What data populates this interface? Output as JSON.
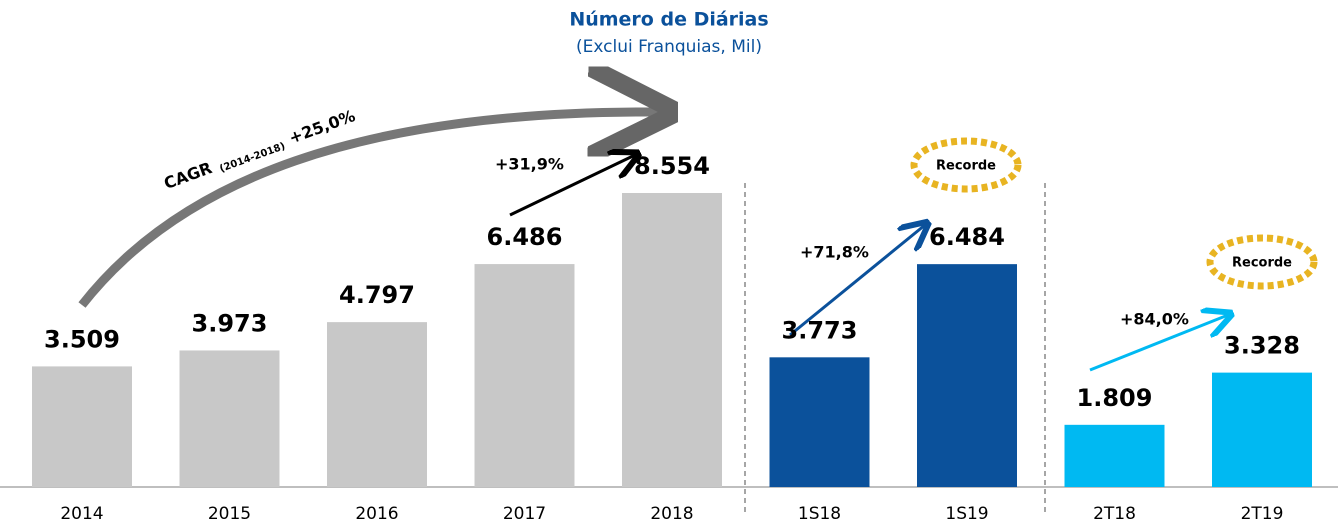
{
  "chart_data": {
    "type": "bar",
    "title": "Número de Diárias",
    "subtitle": "(Exclui Franquias, Mil)",
    "categories": [
      "2014",
      "2015",
      "2016",
      "2017",
      "2018",
      "1S18",
      "1S19",
      "2T18",
      "2T19"
    ],
    "values": [
      3509,
      3973,
      4797,
      6486,
      8554,
      3773,
      6484,
      1809,
      3328
    ],
    "value_labels": [
      "3.509",
      "3.973",
      "4.797",
      "6.486",
      "8.554",
      "3.773",
      "6.484",
      "1.809",
      "3.328"
    ],
    "colors": [
      "#c8c8c8",
      "#c8c8c8",
      "#c8c8c8",
      "#c8c8c8",
      "#c8c8c8",
      "#0b519b",
      "#0b519b",
      "#00b9f2",
      "#00b9f2"
    ],
    "annotations": {
      "cagr": "CAGR",
      "cagr_period": "(2014-2018)",
      "cagr_value": "+25,0%",
      "growth_2017_2018": "+31,9%",
      "growth_1s": "+71,8%",
      "growth_2t": "+84,0%",
      "record_1s": "Recorde",
      "record_2t": "Recorde"
    }
  }
}
